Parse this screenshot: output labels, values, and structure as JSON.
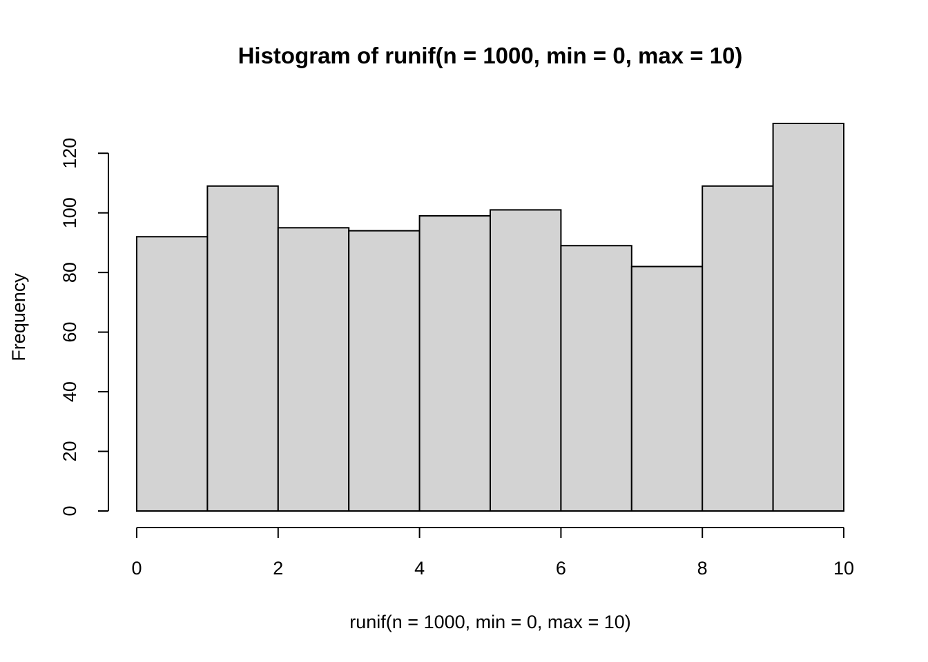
{
  "chart_data": {
    "type": "bar",
    "title": "Histogram of runif(n = 1000, min = 0, max = 10)",
    "xlabel": "runif(n = 1000, min = 0, max = 10)",
    "ylabel": "Frequency",
    "bin_edges": [
      0,
      1,
      2,
      3,
      4,
      5,
      6,
      7,
      8,
      9,
      10
    ],
    "values": [
      92,
      109,
      95,
      94,
      99,
      101,
      89,
      82,
      109,
      130
    ],
    "xlim": [
      0,
      10
    ],
    "ylim": [
      0,
      130
    ],
    "x_ticks": [
      0,
      2,
      4,
      6,
      8,
      10
    ],
    "y_ticks": [
      0,
      20,
      40,
      60,
      80,
      100,
      120
    ],
    "grid": false,
    "bar_color": "#d3d3d3",
    "edge_color": "#000000"
  }
}
